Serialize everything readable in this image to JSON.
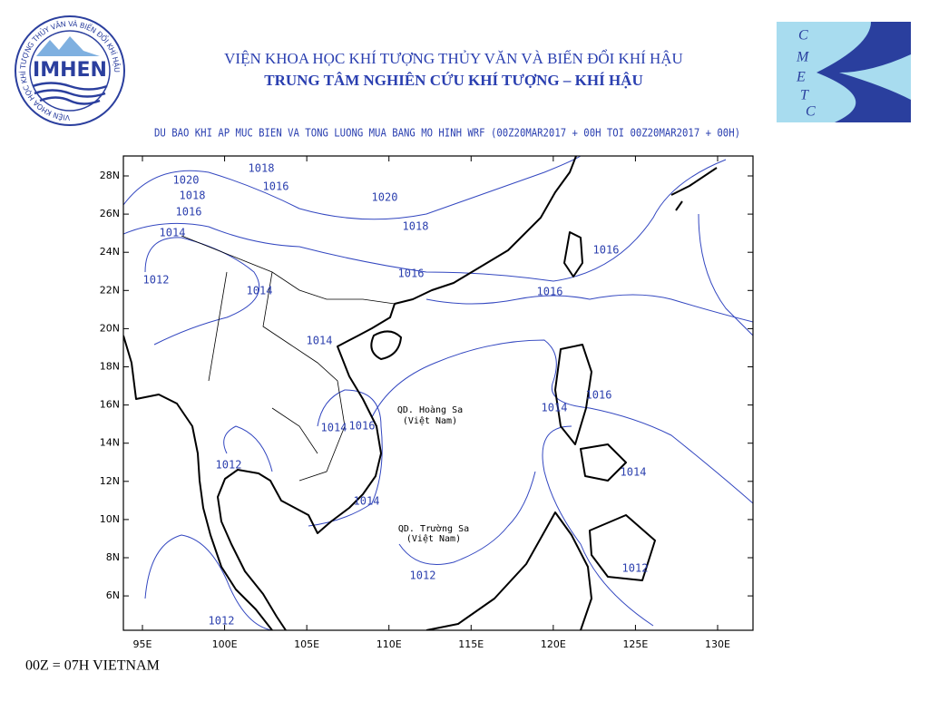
{
  "header": {
    "institute": "VIỆN KHOA HỌC KHÍ TƯỢNG THỦY VĂN VÀ BIẾN ĐỔI KHÍ HẬU",
    "center": "TRUNG TÂM NGHIÊN CỨU KHÍ TƯỢNG – KHÍ HẬU"
  },
  "logos": {
    "left": {
      "name": "IMHEN",
      "ring": "VIỆN KHOA HỌC KHÍ TƯỢNG THỦY VĂN VÀ BIẾN ĐỔI KHÍ HẬU"
    },
    "right": {
      "letters": [
        "C",
        "M",
        "E",
        "T",
        "C"
      ]
    }
  },
  "map": {
    "title": "DU BAO KHI AP MUC BIEN VA TONG LUONG MUA BANG MO HINH WRF (00Z20MAR2017 + 00H TOI 00Z20MAR2017 + 00H)",
    "x_ticks": [
      "95E",
      "100E",
      "105E",
      "110E",
      "115E",
      "120E",
      "125E",
      "130E"
    ],
    "y_ticks": [
      "28N",
      "26N",
      "24N",
      "22N",
      "20N",
      "18N",
      "16N",
      "14N",
      "12N",
      "10N",
      "8N",
      "6N"
    ],
    "isobar_labels": [
      "1018",
      "1020",
      "1016",
      "1018",
      "1020",
      "1016",
      "1018",
      "1014",
      "1016",
      "1016",
      "1012",
      "1014",
      "1016",
      "1014",
      "1016",
      "1014",
      "1014",
      "1016",
      "1012",
      "1014",
      "1014",
      "1012",
      "1012",
      "1012"
    ],
    "places": [
      {
        "name": "QD. Hoàng Sa",
        "note": "(Việt Nam)"
      },
      {
        "name": "QD. Trường Sa",
        "note": "(Việt Nam)"
      }
    ]
  },
  "footer": "00Z = 07H VIETNAM"
}
